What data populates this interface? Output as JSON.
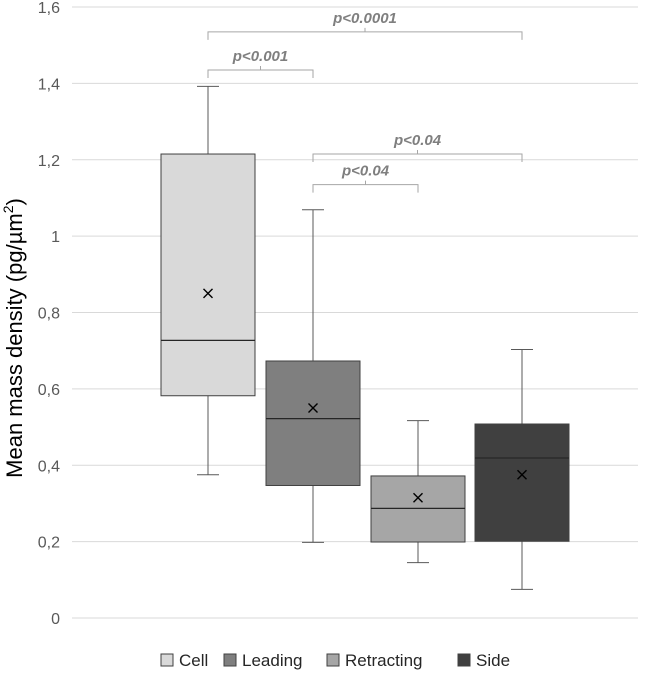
{
  "chart_data": {
    "type": "box",
    "title": "",
    "xlabel": "",
    "ylabel": "Mean mass density (pg/µm",
    "ylabel_superscript": "2",
    "ylabel_close": ")",
    "ylim": [
      0,
      1.6
    ],
    "yticks": [
      0,
      0.2,
      0.4,
      0.6,
      0.8,
      1,
      1.2,
      1.4,
      1.6
    ],
    "ytick_labels": [
      "0",
      "0,2",
      "0,4",
      "0,6",
      "0,8",
      "1",
      "1,2",
      "1,4",
      "1,6"
    ],
    "grid": true,
    "legend_position": "bottom",
    "series": [
      {
        "name": "Cell",
        "color": "#d9d9d9",
        "min": 0.375,
        "q1": 0.582,
        "median": 0.727,
        "mean": 0.85,
        "q3": 1.215,
        "max": 1.392
      },
      {
        "name": "Leading",
        "color": "#7f7f7f",
        "min": 0.198,
        "q1": 0.347,
        "median": 0.522,
        "mean": 0.55,
        "q3": 0.673,
        "max": 1.069
      },
      {
        "name": "Retracting",
        "color": "#a6a6a6",
        "min": 0.145,
        "q1": 0.199,
        "median": 0.287,
        "mean": 0.315,
        "q3": 0.372,
        "max": 0.517
      },
      {
        "name": "Side",
        "color": "#404040",
        "min": 0.075,
        "q1": 0.201,
        "median": 0.419,
        "mean": 0.375,
        "q3": 0.508,
        "max": 0.703
      }
    ],
    "annotations": [
      {
        "label": "p<0.0001",
        "from": 0,
        "to": 3,
        "y": 1.535
      },
      {
        "label": "p<0.001",
        "from": 0,
        "to": 1,
        "y": 1.435
      },
      {
        "label": "p<0.04",
        "from": 1,
        "to": 3,
        "y": 1.215
      },
      {
        "label": "p<0.04",
        "from": 1,
        "to": 2,
        "y": 1.135
      }
    ]
  }
}
